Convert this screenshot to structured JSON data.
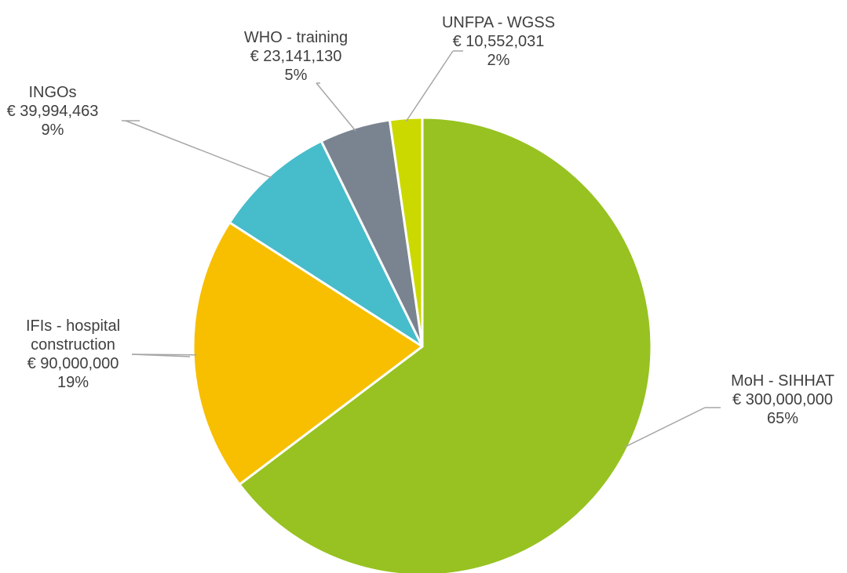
{
  "chart_data": {
    "type": "pie",
    "title": "",
    "slices": [
      {
        "name": "MoH - SIHHAT",
        "name_lines": [
          "MoH - SIHHAT"
        ],
        "value": 300000000,
        "value_label": "€ 300,000,000",
        "percent_label": "65%",
        "color": "#97c221"
      },
      {
        "name": "IFIs - hospital construction",
        "name_lines": [
          "IFIs - hospital",
          "construction"
        ],
        "value": 90000000,
        "value_label": "€ 90,000,000",
        "percent_label": "19%",
        "color": "#f7bf00"
      },
      {
        "name": "INGOs",
        "name_lines": [
          "INGOs"
        ],
        "value": 39994463,
        "value_label": "€ 39,994,463",
        "percent_label": "9%",
        "color": "#47bcca"
      },
      {
        "name": "WHO - training",
        "name_lines": [
          "WHO - training"
        ],
        "value": 23141130,
        "value_label": "€ 23,141,130",
        "percent_label": "5%",
        "color": "#7a8490"
      },
      {
        "name": "UNFPA - WGSS",
        "name_lines": [
          "UNFPA - WGSS"
        ],
        "value": 10552031,
        "value_label": "€ 10,552,031",
        "percent_label": "2%",
        "color": "#cbd900"
      }
    ],
    "legend": "none",
    "label_position": "outside-with-leader-lines"
  }
}
